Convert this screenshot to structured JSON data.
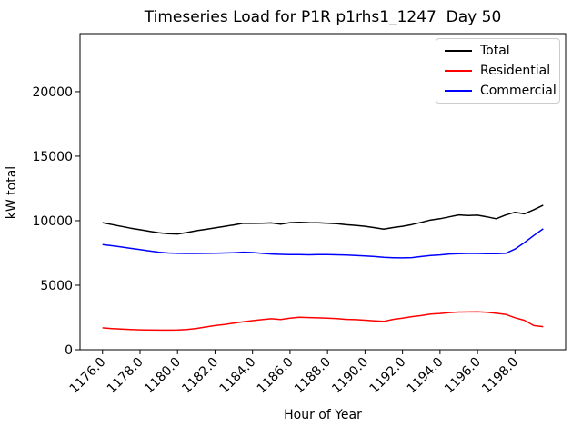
{
  "figure": {
    "title": "Timeseries Load for P1R p1rhs1_1247  Day 50",
    "xlabel": "Hour of Year",
    "ylabel": "kW total"
  },
  "chart_data": {
    "type": "line",
    "title": "Timeseries Load for P1R p1rhs1_1247  Day 50",
    "xlabel": "Hour of Year",
    "ylabel": "kW total",
    "grid": false,
    "legend_position": "upper right",
    "xlim": [
      1174.8,
      1200.7
    ],
    "ylim": [
      0,
      24500
    ],
    "x_ticks": [
      1176,
      1178,
      1180,
      1182,
      1184,
      1186,
      1188,
      1190,
      1192,
      1194,
      1196,
      1198
    ],
    "x_tick_labels": [
      "1176.0",
      "1178.0",
      "1180.0",
      "1182.0",
      "1184.0",
      "1186.0",
      "1188.0",
      "1190.0",
      "1192.0",
      "1194.0",
      "1196.0",
      "1198.0"
    ],
    "y_ticks": [
      0,
      5000,
      10000,
      15000,
      20000
    ],
    "y_tick_labels": [
      "0",
      "5000",
      "10000",
      "15000",
      "20000"
    ],
    "x": [
      1176.0,
      1176.5,
      1177.0,
      1177.5,
      1178.0,
      1178.5,
      1179.0,
      1179.5,
      1180.0,
      1180.5,
      1181.0,
      1181.5,
      1182.0,
      1182.5,
      1183.0,
      1183.5,
      1184.0,
      1184.5,
      1185.0,
      1185.5,
      1186.0,
      1186.5,
      1187.0,
      1187.5,
      1188.0,
      1188.5,
      1189.0,
      1189.5,
      1190.0,
      1190.5,
      1191.0,
      1191.5,
      1192.0,
      1192.5,
      1193.0,
      1193.5,
      1194.0,
      1194.5,
      1195.0,
      1195.5,
      1196.0,
      1196.5,
      1197.0,
      1197.5,
      1198.0,
      1198.5,
      1199.0,
      1199.5
    ],
    "series": [
      {
        "name": "Total",
        "color": "#000000",
        "values": [
          9850,
          9700,
          9560,
          9420,
          9300,
          9180,
          9060,
          8990,
          8970,
          9080,
          9220,
          9330,
          9440,
          9560,
          9670,
          9810,
          9790,
          9800,
          9830,
          9740,
          9850,
          9880,
          9850,
          9840,
          9810,
          9770,
          9690,
          9640,
          9570,
          9460,
          9350,
          9470,
          9570,
          9700,
          9870,
          10050,
          10150,
          10300,
          10450,
          10400,
          10430,
          10300,
          10150,
          10440,
          10650,
          10530,
          10850,
          11200
        ]
      },
      {
        "name": "Residential",
        "color": "#ff0000",
        "values": [
          1700,
          1640,
          1600,
          1560,
          1545,
          1530,
          1520,
          1520,
          1530,
          1560,
          1650,
          1760,
          1870,
          1960,
          2060,
          2160,
          2250,
          2330,
          2400,
          2340,
          2450,
          2520,
          2490,
          2470,
          2450,
          2410,
          2350,
          2330,
          2290,
          2240,
          2200,
          2350,
          2450,
          2560,
          2650,
          2760,
          2810,
          2880,
          2920,
          2930,
          2940,
          2900,
          2820,
          2740,
          2480,
          2280,
          1870,
          1790
        ]
      },
      {
        "name": "Commercial",
        "color": "#0000ff",
        "values": [
          8150,
          8060,
          7960,
          7860,
          7760,
          7650,
          7560,
          7500,
          7470,
          7460,
          7460,
          7470,
          7480,
          7500,
          7520,
          7560,
          7530,
          7470,
          7420,
          7390,
          7380,
          7370,
          7360,
          7370,
          7370,
          7360,
          7340,
          7310,
          7270,
          7220,
          7160,
          7130,
          7120,
          7140,
          7220,
          7300,
          7350,
          7420,
          7450,
          7460,
          7460,
          7450,
          7450,
          7470,
          7800,
          8300,
          8850,
          9370
        ]
      }
    ]
  }
}
